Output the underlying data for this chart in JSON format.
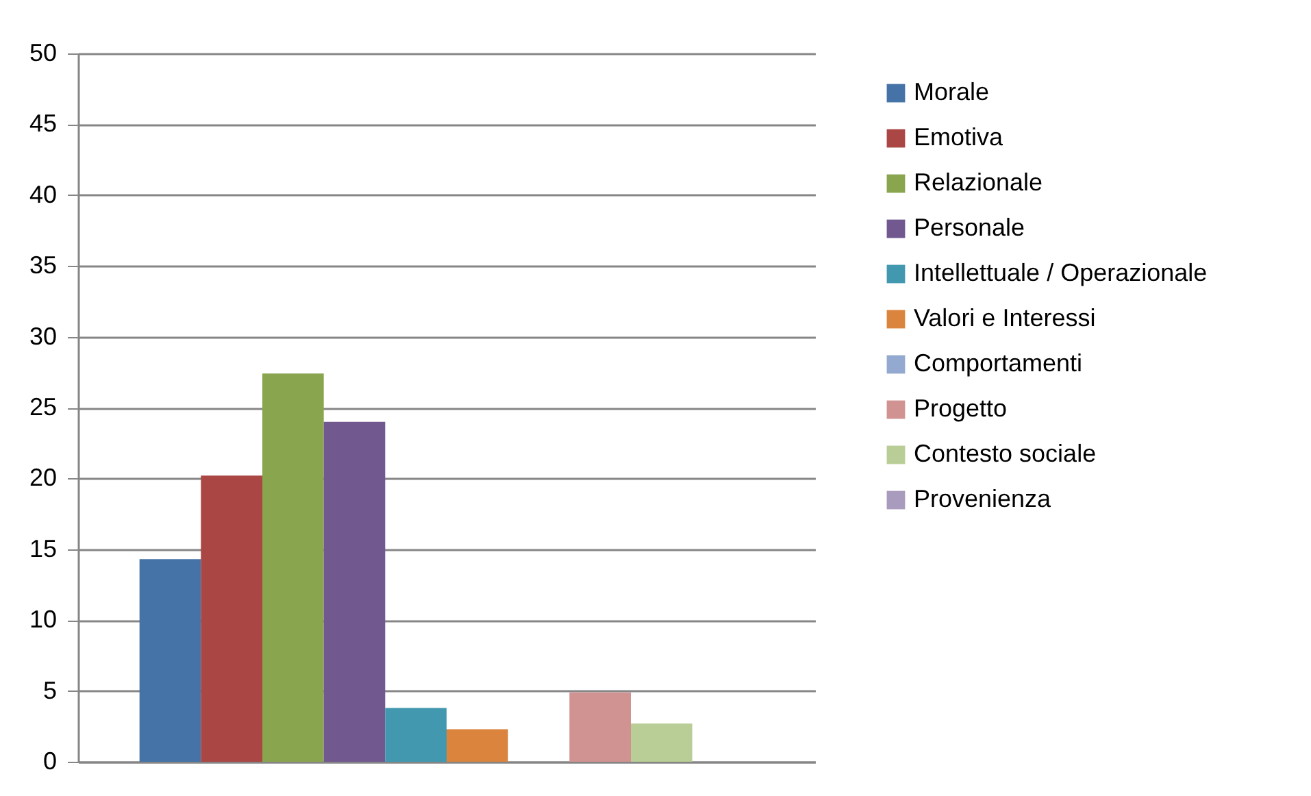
{
  "chart_data": {
    "type": "bar",
    "categories": [
      null
    ],
    "series": [
      {
        "name": "Morale",
        "color": "#4572a7",
        "values": [
          14.3
        ]
      },
      {
        "name": "Emotiva",
        "color": "#aa4643",
        "values": [
          20.2
        ]
      },
      {
        "name": "Relazionale",
        "color": "#89a54e",
        "values": [
          27.4
        ]
      },
      {
        "name": "Personale",
        "color": "#71588f",
        "values": [
          24
        ]
      },
      {
        "name": "Intellettuale / Operazionale",
        "color": "#4198af",
        "values": [
          3.8
        ]
      },
      {
        "name": "Valori e Interessi",
        "color": "#db843d",
        "values": [
          2.3
        ]
      },
      {
        "name": "Comportamenti",
        "color": "#93a9cf",
        "values": [
          0
        ]
      },
      {
        "name": "Progetto",
        "color": "#d19392",
        "values": [
          4.9
        ]
      },
      {
        "name": "Contesto sociale",
        "color": "#b9cd96",
        "values": [
          2.7
        ]
      },
      {
        "name": "Provenienza",
        "color": "#a99bbd",
        "values": [
          0
        ]
      }
    ],
    "ylim": [
      0,
      50
    ],
    "yticks": [
      0,
      5,
      10,
      15,
      20,
      25,
      30,
      35,
      40,
      45,
      50
    ],
    "grid": "y",
    "legend": "right"
  }
}
